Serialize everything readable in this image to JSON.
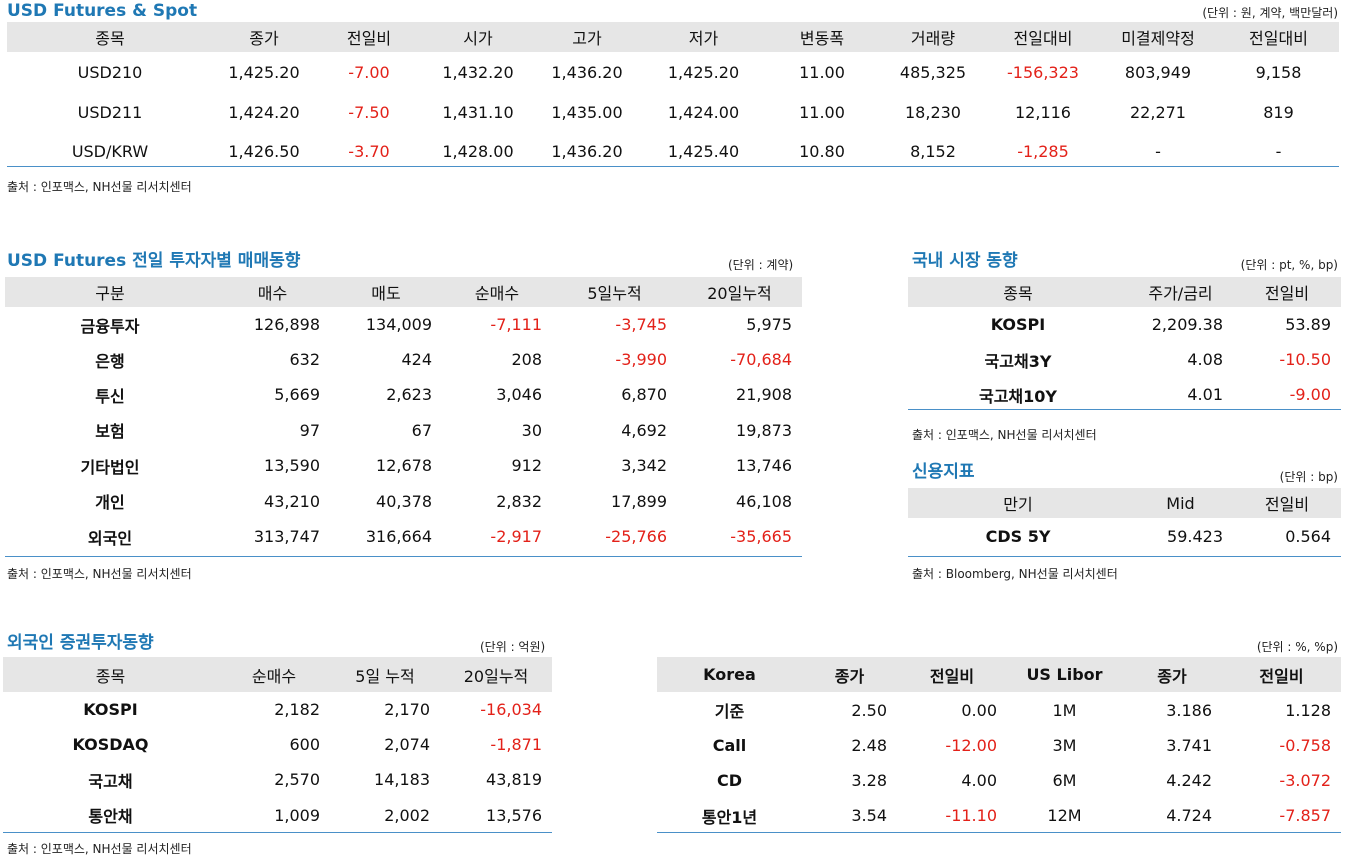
{
  "futures_spot": {
    "title": "USD Futures & Spot",
    "unit": "(단위 : 원, 계약, 백만달러)",
    "headers": [
      "종목",
      "종가",
      "전일비",
      "시가",
      "고가",
      "저가",
      "변동폭",
      "거래량",
      "전일대비",
      "미결제약정",
      "전일대비"
    ],
    "rows": [
      [
        "USD210",
        "1,425.20",
        "-7.00",
        "1,432.20",
        "1,436.20",
        "1,425.20",
        "11.00",
        "485,325",
        "-156,323",
        "803,949",
        "9,158"
      ],
      [
        "USD211",
        "1,424.20",
        "-7.50",
        "1,431.10",
        "1,435.00",
        "1,424.00",
        "11.00",
        "18,230",
        "12,116",
        "22,271",
        "819"
      ],
      [
        "USD/KRW",
        "1,426.50",
        "-3.70",
        "1,428.00",
        "1,436.20",
        "1,425.40",
        "10.80",
        "8,152",
        "-1,285",
        "-",
        "-"
      ]
    ],
    "source": "출처 : 인포맥스, NH선물 리서치센터"
  },
  "investor_flow": {
    "title": "USD Futures 전일 투자자별 매매동향",
    "unit": "(단위 : 계약)",
    "headers": [
      "구분",
      "매수",
      "매도",
      "순매수",
      "5일누적",
      "20일누적"
    ],
    "rows": [
      [
        "금융투자",
        "126,898",
        "134,009",
        "-7,111",
        "-3,745",
        "5,975"
      ],
      [
        "은행",
        "632",
        "424",
        "208",
        "-3,990",
        "-70,684"
      ],
      [
        "투신",
        "5,669",
        "2,623",
        "3,046",
        "6,870",
        "21,908"
      ],
      [
        "보험",
        "97",
        "67",
        "30",
        "4,692",
        "19,873"
      ],
      [
        "기타법인",
        "13,590",
        "12,678",
        "912",
        "3,342",
        "13,746"
      ],
      [
        "개인",
        "43,210",
        "40,378",
        "2,832",
        "17,899",
        "46,108"
      ],
      [
        "외국인",
        "313,747",
        "316,664",
        "-2,917",
        "-25,766",
        "-35,665"
      ]
    ],
    "source": "출처 : 인포맥스, NH선물 리서치센터"
  },
  "domestic_market": {
    "title": "국내 시장 동향",
    "unit": "(단위 : pt, %, bp)",
    "headers": [
      "종목",
      "주가/금리",
      "전일비"
    ],
    "rows": [
      [
        "KOSPI",
        "2,209.38",
        "53.89"
      ],
      [
        "국고채3Y",
        "4.08",
        "-10.50"
      ],
      [
        "국고채10Y",
        "4.01",
        "-9.00"
      ]
    ],
    "source": "출처 : 인포맥스, NH선물 리서치센터"
  },
  "credit": {
    "title": "신용지표",
    "unit": "(단위 : bp)",
    "headers": [
      "만기",
      "Mid",
      "전일비"
    ],
    "rows": [
      [
        "CDS 5Y",
        "59.423",
        "0.564"
      ]
    ],
    "source": "출처 : Bloomberg, NH선물 리서치센터"
  },
  "foreign_securities": {
    "title": "외국인 증권투자동향",
    "unit": "(단위 : 억원)",
    "headers": [
      "종목",
      "순매수",
      "5일 누적",
      "20일누적"
    ],
    "rows": [
      [
        "KOSPI",
        "2,182",
        "2,170",
        "-16,034"
      ],
      [
        "KOSDAQ",
        "600",
        "2,074",
        "-1,871"
      ],
      [
        "국고채",
        "2,570",
        "14,183",
        "43,819"
      ],
      [
        "통안채",
        "1,009",
        "2,002",
        "13,576"
      ]
    ],
    "source": "출처 : 인포맥스, NH선물 리서치센터"
  },
  "rates": {
    "unit": "(단위 : %, %p)",
    "headers": [
      "Korea",
      "종가",
      "전일비",
      "US Libor",
      "종가",
      "전일비"
    ],
    "rows": [
      [
        "기준",
        "2.50",
        "0.00",
        "1M",
        "3.186",
        "1.128"
      ],
      [
        "Call",
        "2.48",
        "-12.00",
        "3M",
        "3.741",
        "-0.758"
      ],
      [
        "CD",
        "3.28",
        "4.00",
        "6M",
        "4.242",
        "-3.072"
      ],
      [
        "통안1년",
        "3.54",
        "-11.10",
        "12M",
        "4.724",
        "-7.857"
      ]
    ]
  },
  "colors": {
    "title": "#1f78b4",
    "negative": "#e32119",
    "header_bg": "#e6e6e6",
    "rule": "#4a90c8"
  }
}
